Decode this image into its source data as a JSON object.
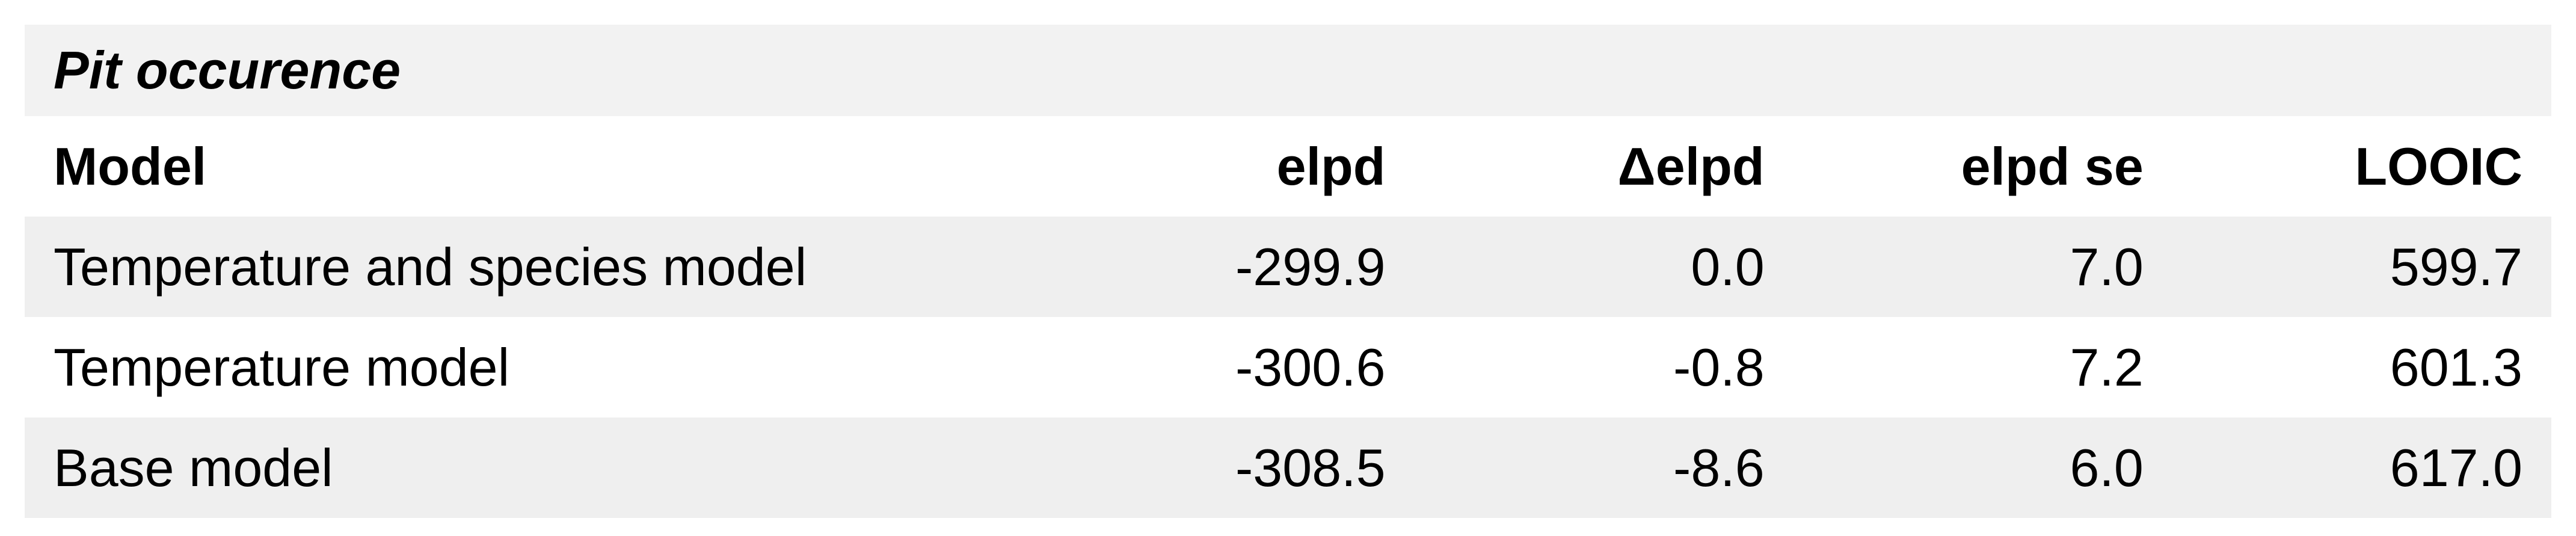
{
  "table": {
    "caption": "Pit occurence",
    "headers": {
      "model": "Model",
      "elpd": "elpd",
      "delta_elpd": "Δelpd",
      "elpd_se": "elpd se",
      "looic": "LOOIC"
    },
    "rows": [
      {
        "model": "Temperature and species model",
        "elpd": "-299.9",
        "delta_elpd": "0.0",
        "elpd_se": "7.0",
        "looic": "599.7"
      },
      {
        "model": "Temperature model",
        "elpd": "-300.6",
        "delta_elpd": "-0.8",
        "elpd_se": "7.2",
        "looic": "601.3"
      },
      {
        "model": "Base model",
        "elpd": "-308.5",
        "delta_elpd": "-8.6",
        "elpd_se": "6.0",
        "looic": "617.0"
      }
    ]
  }
}
